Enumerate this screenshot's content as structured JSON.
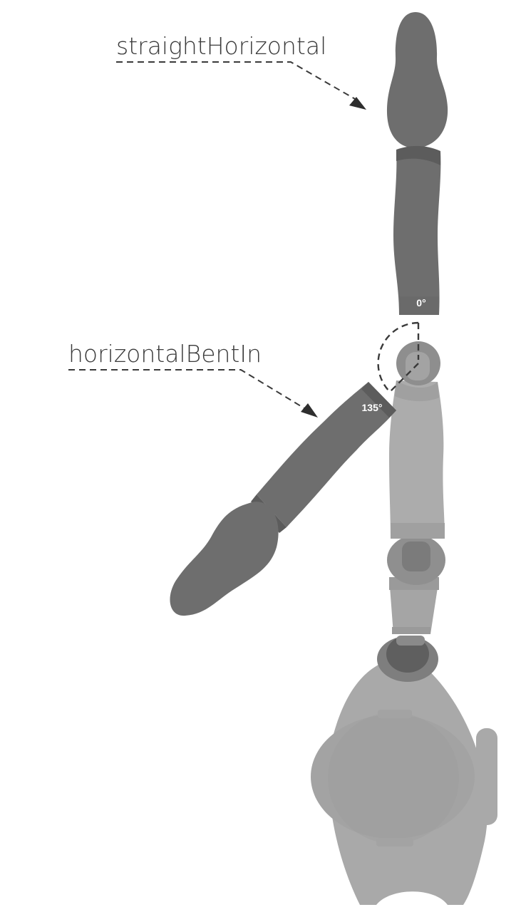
{
  "labels": {
    "straight": "straightHorizontal",
    "bent": "horizontalBentIn"
  },
  "angles": {
    "straight": "0°",
    "bent": "135°"
  },
  "icons": [
    "arrow-head-icon"
  ],
  "colors": {
    "background": "#ffffff",
    "finger_active": "#6e6e6e",
    "finger_band": "#5c5c5c",
    "body_light": "#a9a9a9",
    "body_mid": "#9c9c9c",
    "body_dark": "#7a7a7a",
    "dashed_line": "#3a3a3a"
  }
}
